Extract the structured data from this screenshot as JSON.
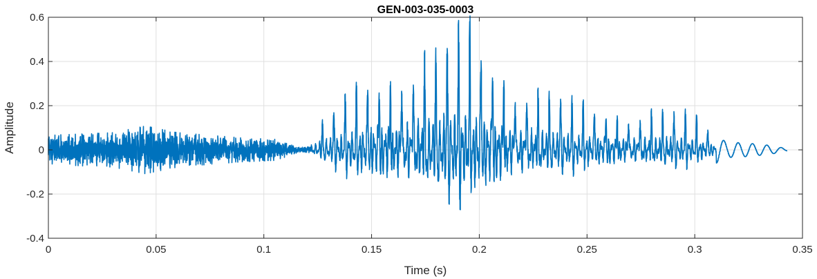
{
  "chart_data": {
    "type": "line",
    "title": "GEN-003-035-0003",
    "xlabel": "Time (s)",
    "ylabel": "Amplitude",
    "xlim": [
      0,
      0.35
    ],
    "ylim": [
      -0.4,
      0.6
    ],
    "xticks": [
      0,
      0.05,
      0.1,
      0.15,
      0.2,
      0.25,
      0.3,
      0.35
    ],
    "yticks": [
      -0.4,
      -0.2,
      0,
      0.2,
      0.4,
      0.6
    ],
    "xtick_labels": [
      "0",
      "0.05",
      "0.1",
      "0.15",
      "0.2",
      "0.25",
      "0.3",
      "0.35"
    ],
    "ytick_labels": [
      "-0.4",
      "-0.2",
      "0",
      "0.2",
      "0.4",
      "0.6"
    ],
    "grid": true,
    "line_color": "#0072BD",
    "series": [
      {
        "duration": 0.343,
        "segments": [
          {
            "t_start": 0.0,
            "t_end": 0.122,
            "kind": "noise",
            "envelope": [
              [
                0.0,
                0.055
              ],
              [
                0.03,
                0.065
              ],
              [
                0.045,
                0.09
              ],
              [
                0.06,
                0.065
              ],
              [
                0.09,
                0.045
              ],
              [
                0.105,
                0.04
              ],
              [
                0.115,
                0.015
              ],
              [
                0.122,
                0.01
              ]
            ]
          },
          {
            "t_start": 0.122,
            "t_end": 0.31,
            "kind": "voiced",
            "f0_hz": 190,
            "envelope": [
              [
                0.122,
                0.02
              ],
              [
                0.125,
                0.1
              ],
              [
                0.14,
                0.22
              ],
              [
                0.15,
                0.3
              ],
              [
                0.165,
                0.35
              ],
              [
                0.18,
                0.4
              ],
              [
                0.19,
                0.47
              ],
              [
                0.2,
                0.44
              ],
              [
                0.21,
                0.34
              ],
              [
                0.22,
                0.27
              ],
              [
                0.24,
                0.2
              ],
              [
                0.25,
                0.18
              ],
              [
                0.26,
                0.16
              ],
              [
                0.28,
                0.16
              ],
              [
                0.295,
                0.15
              ],
              [
                0.303,
                0.12
              ],
              [
                0.31,
                0.06
              ]
            ]
          },
          {
            "t_start": 0.31,
            "t_end": 0.343,
            "kind": "decay",
            "envelope": [
              [
                0.31,
                0.06
              ],
              [
                0.315,
                0.035
              ],
              [
                0.325,
                0.03
              ],
              [
                0.335,
                0.02
              ],
              [
                0.343,
                0.005
              ]
            ]
          }
        ]
      }
    ]
  }
}
